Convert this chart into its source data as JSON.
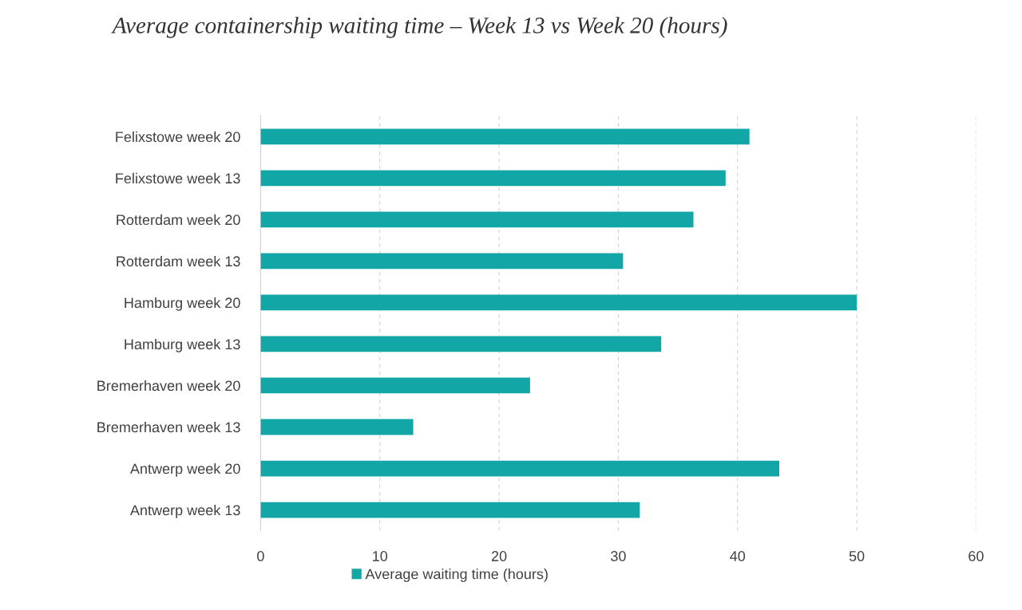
{
  "chart_data": {
    "type": "bar",
    "orientation": "horizontal",
    "title": "Average containership waiting time – Week 13 vs Week 20 (hours)",
    "categories": [
      "Felixstowe week 20",
      "Felixstowe week 13",
      "Rotterdam week 20",
      "Rotterdam week 13",
      "Hamburg week 20",
      "Hamburg week 13",
      "Bremerhaven week 20",
      "Bremerhaven week 13",
      "Antwerp week 20",
      "Antwerp week 13"
    ],
    "series": [
      {
        "name": "Average waiting time (hours)",
        "color": "#13a6a6",
        "values": [
          41.0,
          39.0,
          36.3,
          30.4,
          50.0,
          33.6,
          22.6,
          12.8,
          43.5,
          31.8
        ]
      }
    ],
    "xlim": [
      0,
      60
    ],
    "xticks": [
      0,
      10,
      20,
      30,
      40,
      50,
      60
    ],
    "grid": "x",
    "legend": "bottom"
  }
}
